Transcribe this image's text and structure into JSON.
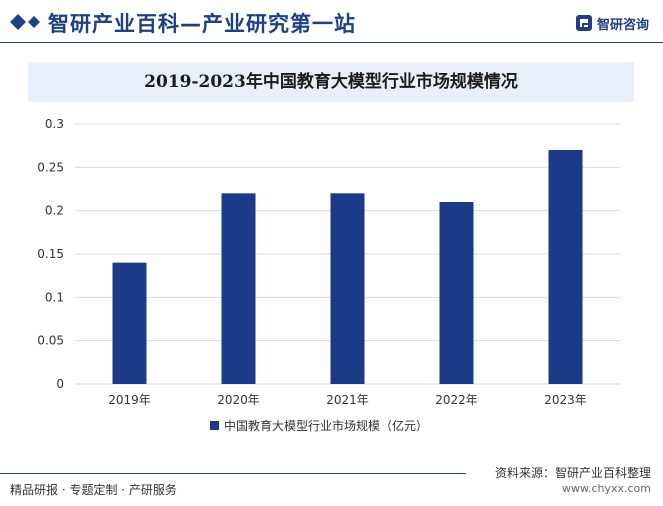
{
  "header": {
    "title": "智研产业百科—产业研究第一站",
    "logo_text": "智研咨询"
  },
  "colors": {
    "brand": "#1f3f86",
    "bar": "#1b3a87",
    "title_band": "#e9eff8",
    "grid": "#d9d9d9"
  },
  "chart_data": {
    "type": "bar",
    "title": "2019-2023年中国教育大模型行业市场规模情况",
    "categories": [
      "2019年",
      "2020年",
      "2021年",
      "2022年",
      "2023年"
    ],
    "series": [
      {
        "name": "中国教育大模型行业市场规模（亿元）",
        "values": [
          0.14,
          0.22,
          0.22,
          0.21,
          0.27
        ]
      }
    ],
    "ylim": [
      0,
      0.3
    ],
    "yticks": [
      "0",
      "0.05",
      "0.1",
      "0.15",
      "0.2",
      "0.25",
      "0.3"
    ],
    "xlabel": "",
    "ylabel": "",
    "grid": true,
    "legend_position": "bottom"
  },
  "footer": {
    "left_text": "精品研报 · 专题定制 · 产研服务",
    "source": "资料来源：智研产业百科整理",
    "url": "www.chyxx.com"
  }
}
